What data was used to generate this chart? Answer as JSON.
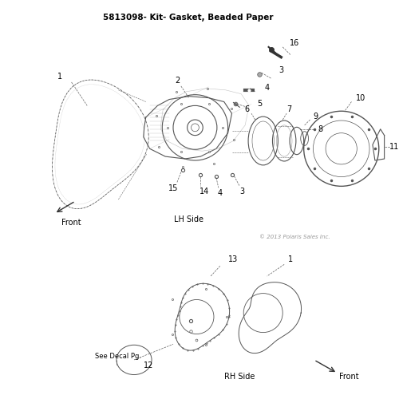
{
  "title": "5813098- Kit- Gasket, Beaded Paper",
  "bg_color": "#ffffff",
  "text_color": "#000000",
  "copyright": "© 2013 Polaris Sales Inc.",
  "lh_side_label": "LH Side",
  "front_label_lh": "Front",
  "rh_side_label": "RH Side",
  "front_label_rh": "Front",
  "see_decal": "See Decal Pg.",
  "gray": "#555555",
  "lgray": "#999999",
  "dgray": "#333333"
}
